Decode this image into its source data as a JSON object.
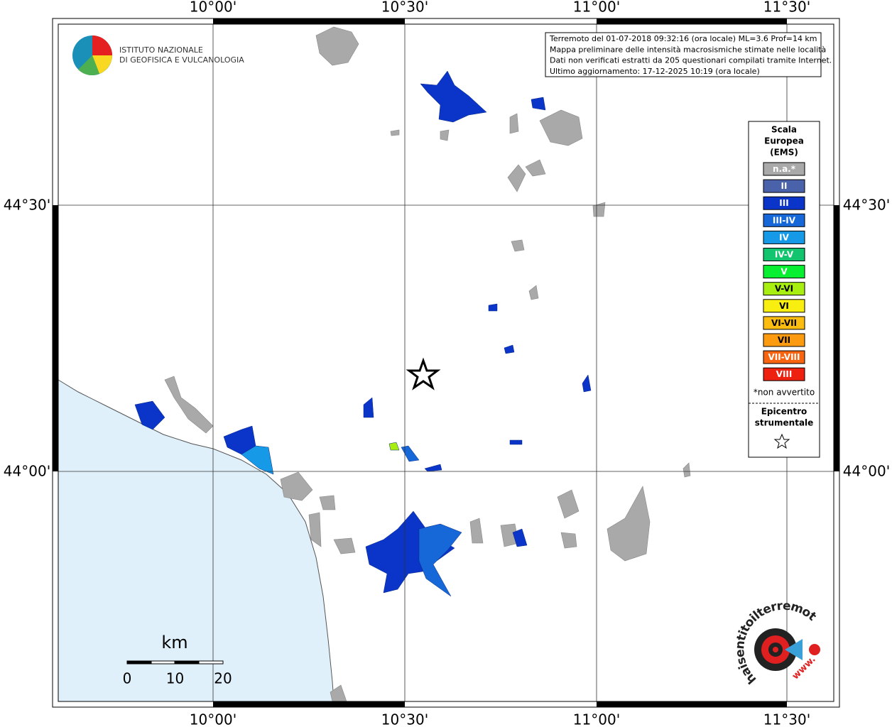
{
  "header": {
    "lines": [
      "Terremoto del 01-07-2018 09:32:16 (ora locale) ML=3.6 Prof=14 km",
      "Mappa preliminare delle intensità macrosismiche stimate nelle località",
      "Dati non verificati estratti da 205 questionari compilati tramite Internet.",
      "Ultimo aggiornamento: 17-12-2025 10:19 (ora locale)"
    ]
  },
  "logo": {
    "lines": [
      "ISTITUTO NAZIONALE",
      "DI GEOFISICA E VULCANOLOGIA"
    ]
  },
  "graticule": {
    "longitudes": [
      "10°00'",
      "10°30'",
      "11°00'",
      "11°30'"
    ],
    "latitudes": [
      "44°30'",
      "44°00'"
    ]
  },
  "legend": {
    "title": [
      "Scala",
      "Europea",
      "(EMS)"
    ],
    "items": [
      {
        "label": "n.a.*",
        "color": "#a9a9a9"
      },
      {
        "label": "II",
        "color": "#4a62aa"
      },
      {
        "label": "III",
        "color": "#0a35c8"
      },
      {
        "label": "III-IV",
        "color": "#1668d8"
      },
      {
        "label": "IV",
        "color": "#1699e6"
      },
      {
        "label": "IV-V",
        "color": "#12c46e"
      },
      {
        "label": "V",
        "color": "#08ee30"
      },
      {
        "label": "V-VI",
        "color": "#a8ee10"
      },
      {
        "label": "VI",
        "color": "#f8ee10"
      },
      {
        "label": "VI-VII",
        "color": "#fcbc10"
      },
      {
        "label": "VII",
        "color": "#fc9a10"
      },
      {
        "label": "VII-VIII",
        "color": "#f86410"
      },
      {
        "label": "VIII",
        "color": "#ee2010"
      }
    ],
    "note": "*non avvertito",
    "epicenter": [
      "Epicentro",
      "strumentale"
    ]
  },
  "scale_bar": {
    "unit": "km",
    "ticks": [
      0,
      10,
      20
    ]
  },
  "badge": {
    "prefix": "www.",
    "text": "haisentitoilterremoto.it"
  }
}
